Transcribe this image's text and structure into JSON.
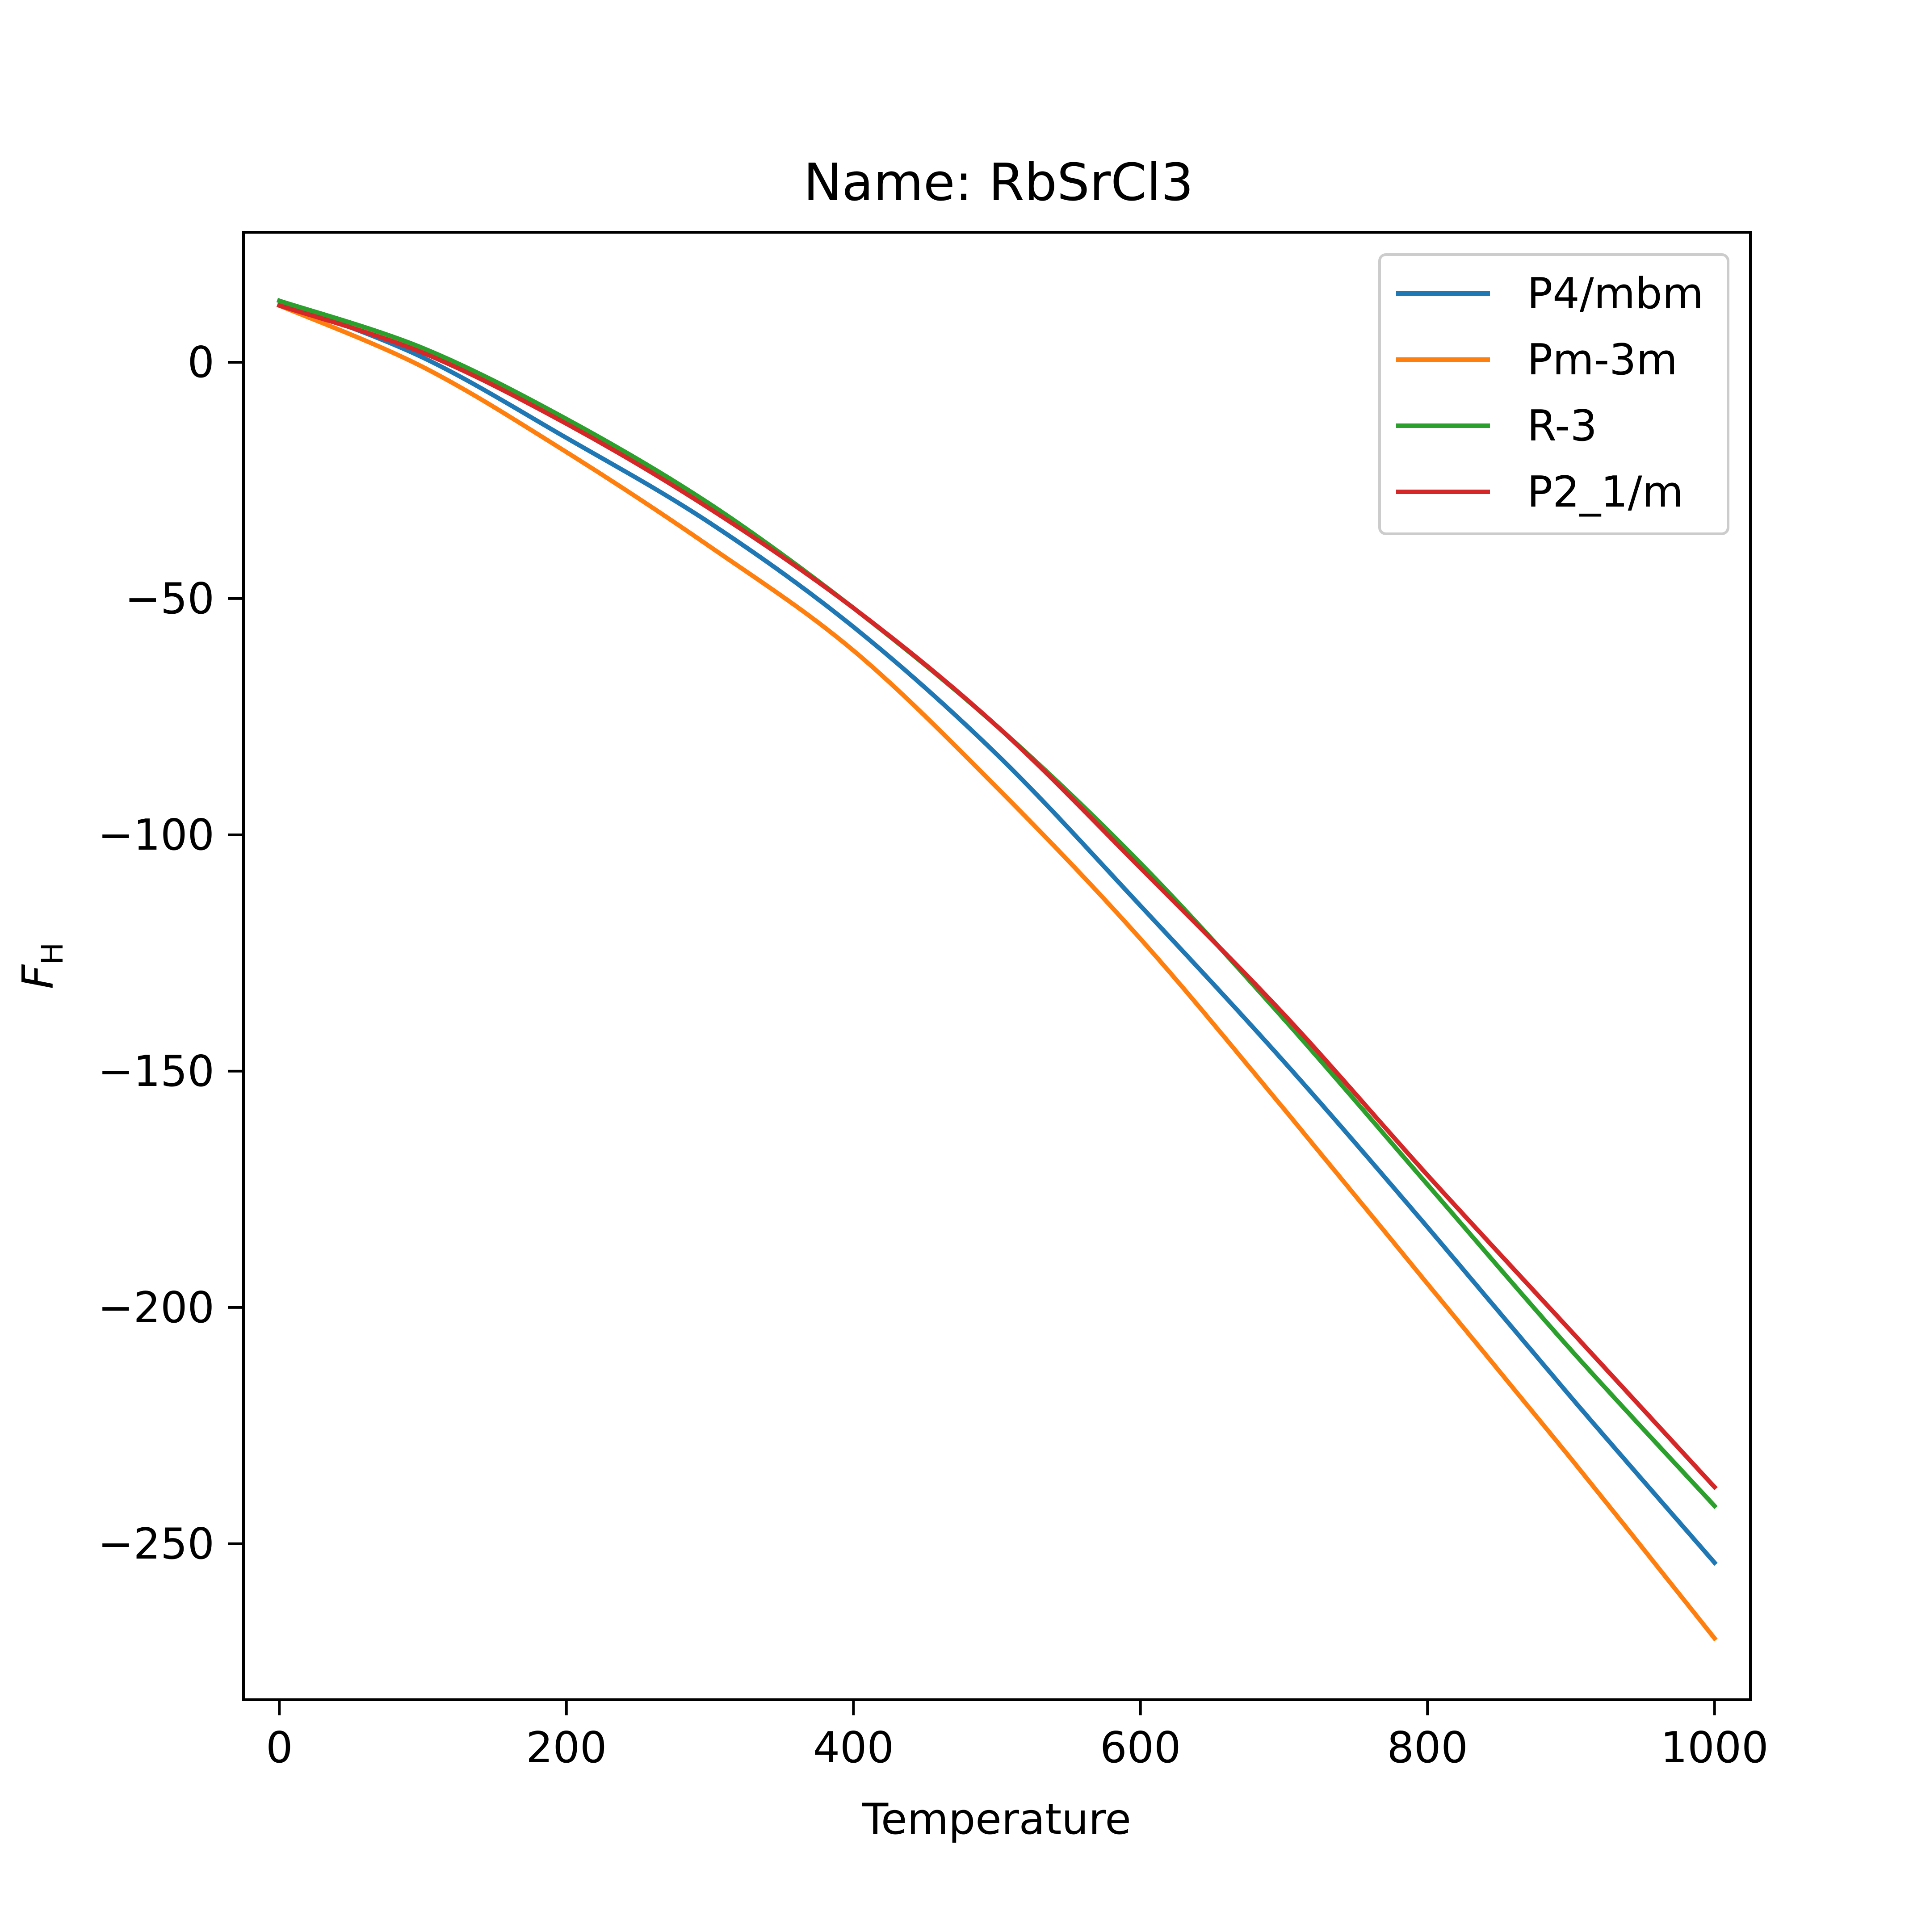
{
  "chart_data": {
    "type": "line",
    "title": "Name: RbSrCl3",
    "xlabel": "Temperature",
    "ylabel_main": "F",
    "ylabel_sub": "H",
    "xlim": [
      -25,
      1025
    ],
    "ylim": [
      -283,
      27.5
    ],
    "x_ticks": [
      0,
      200,
      400,
      600,
      800,
      1000
    ],
    "x_tick_labels": [
      "0",
      "200",
      "400",
      "600",
      "800",
      "1000"
    ],
    "y_ticks": [
      0,
      -50,
      -100,
      -150,
      -200,
      -250
    ],
    "y_tick_labels": [
      "0",
      "−50",
      "−100",
      "−150",
      "−200",
      "−250"
    ],
    "grid": false,
    "legend_position": "top-right",
    "x": [
      0,
      100,
      200,
      300,
      400,
      500,
      600,
      700,
      800,
      900,
      1000
    ],
    "series": [
      {
        "name": "P4/mbm",
        "color": "#1f77b4",
        "values": [
          13,
          1,
          -16,
          -34,
          -56,
          -83,
          -115,
          -148,
          -183,
          -219,
          -254
        ]
      },
      {
        "name": "Pm-3m",
        "color": "#ff7f0e",
        "values": [
          12,
          -1,
          -19,
          -39,
          -61,
          -90,
          -122,
          -158,
          -195,
          -232,
          -270
        ]
      },
      {
        "name": "R-3",
        "color": "#2ca02c",
        "values": [
          13,
          3,
          -12,
          -30,
          -52,
          -77,
          -106,
          -139,
          -174,
          -209,
          -242
        ]
      },
      {
        "name": "P2_1/m",
        "color": "#d62728",
        "values": [
          12,
          2,
          -13,
          -31,
          -52,
          -77,
          -107,
          -138,
          -172,
          -205,
          -238
        ]
      }
    ]
  }
}
